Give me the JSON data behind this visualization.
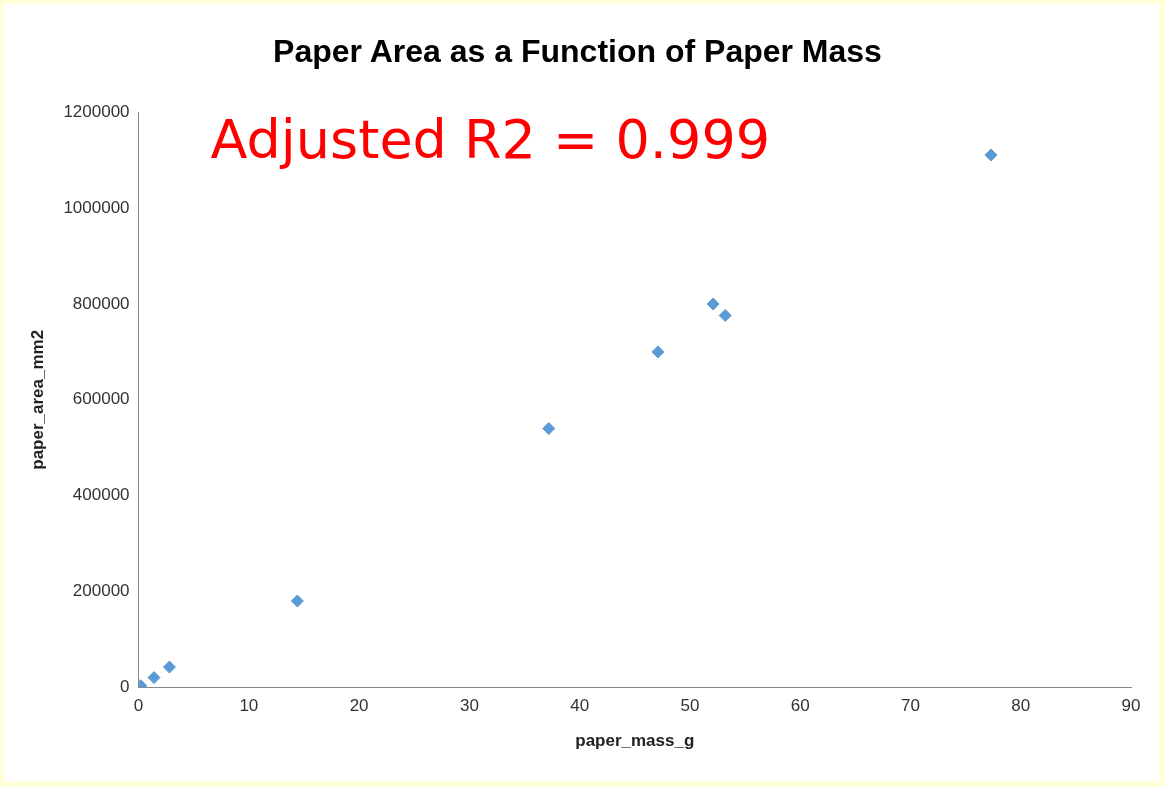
{
  "chart_data": {
    "type": "scatter",
    "title": "Paper Area as a Function of Paper Mass",
    "xlabel": "paper_mass_g",
    "ylabel": "paper_area_mm2",
    "annotations": [
      "Adjusted R2 = 0.999"
    ],
    "series": [
      {
        "color": "#5b9bd5",
        "x": [
          0.2,
          1.4,
          2.8,
          14.4,
          37.2,
          47.1,
          52.1,
          53.2,
          77.3
        ],
        "values": [
          3000,
          20000,
          42000,
          180000,
          540000,
          700000,
          800000,
          776000,
          1111000
        ]
      }
    ],
    "marker": "diamond",
    "xlim": [
      0,
      90
    ],
    "xticks": [
      0,
      10,
      20,
      30,
      40,
      50,
      60,
      70,
      80,
      90
    ],
    "ylim": [
      0,
      1200000
    ],
    "yticks": [
      0,
      200000,
      400000,
      600000,
      800000,
      1000000,
      1200000
    ],
    "grid": false,
    "legend": false
  }
}
